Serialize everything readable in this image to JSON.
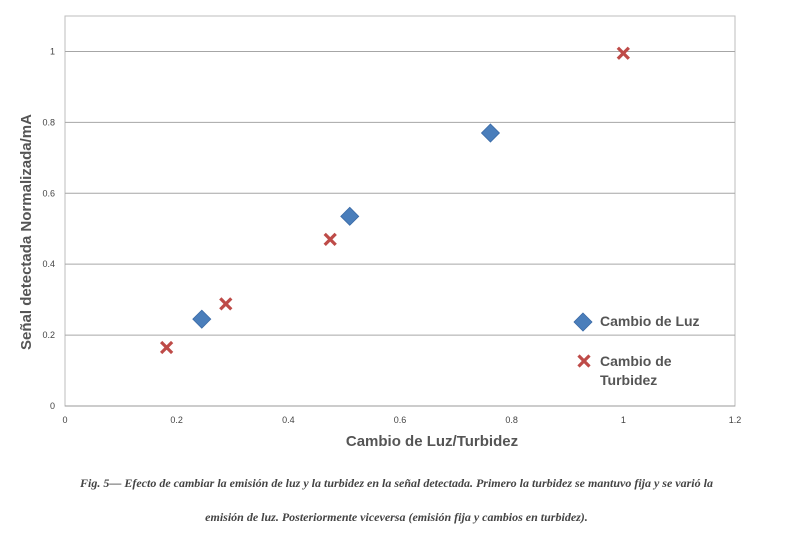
{
  "chart_data": {
    "type": "scatter",
    "xlabel": "Cambio de Luz/Turbidez",
    "ylabel": "Señal detectada Normalizada/mA",
    "xlim": [
      0,
      1.2
    ],
    "ylim": [
      0,
      1.1
    ],
    "x_ticks": [
      "0",
      "0.2",
      "0.4",
      "0.6",
      "0.8",
      "1",
      "1.2"
    ],
    "y_ticks": [
      "0",
      "0.2",
      "0.4",
      "0.6",
      "0.8",
      "1"
    ],
    "grid": "horizontal",
    "legend_position": "bottom-right",
    "series": [
      {
        "name": "Cambio de Luz",
        "marker": "diamond",
        "color": "#4a7ebb",
        "points": [
          {
            "x": 0.245,
            "y": 0.245
          },
          {
            "x": 0.51,
            "y": 0.535
          },
          {
            "x": 0.762,
            "y": 0.77
          }
        ]
      },
      {
        "name": "Cambio de Turbidez",
        "legend_lines": [
          "Cambio de",
          "Turbidez"
        ],
        "marker": "x",
        "color": "#be4b48",
        "points": [
          {
            "x": 0.182,
            "y": 0.165
          },
          {
            "x": 0.288,
            "y": 0.288
          },
          {
            "x": 0.475,
            "y": 0.47
          },
          {
            "x": 1.0,
            "y": 0.995
          }
        ]
      }
    ]
  },
  "caption": {
    "line1": "Fig. 5—  Efecto de cambiar la emisión de luz y la turbidez en la señal detectada. Primero la turbidez se mantuvo fija y se varió la",
    "line2": "emisión de luz. Posteriormente viceversa (emisión fija y cambios en turbidez)."
  }
}
